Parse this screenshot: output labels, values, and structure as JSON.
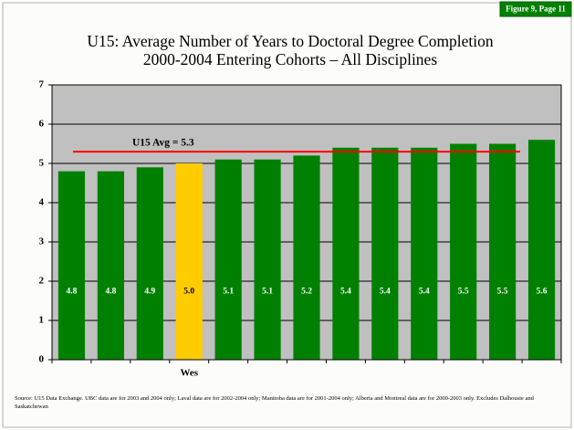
{
  "chart_data": {
    "type": "bar",
    "badge": "Figure 9, Page 11",
    "title": "U15: Average Number of Years to Doctoral Degree Completion",
    "subtitle": "2000-2004 Entering Cohorts – All Disciplines",
    "categories": [
      null,
      null,
      null,
      "Wes",
      null,
      null,
      null,
      null,
      null,
      null,
      null,
      null,
      null
    ],
    "values": [
      4.8,
      4.8,
      4.9,
      5.0,
      5.1,
      5.1,
      5.2,
      5.4,
      5.4,
      5.4,
      5.5,
      5.5,
      5.6
    ],
    "value_labels": [
      "4.8",
      "4.8",
      "4.9",
      "5.0",
      "5.1",
      "5.1",
      "5.2",
      "5.4",
      "5.4",
      "5.4",
      "5.5",
      "5.5",
      "5.6"
    ],
    "colors": [
      "#008000",
      "#008000",
      "#008000",
      "#ffcc00",
      "#008000",
      "#008000",
      "#008000",
      "#008000",
      "#008000",
      "#008000",
      "#008000",
      "#008000",
      "#008000"
    ],
    "ylim": [
      0,
      7
    ],
    "yticks": [
      0,
      1,
      2,
      3,
      4,
      5,
      6,
      7
    ],
    "grid": true,
    "reference_line": {
      "value": 5.3,
      "label": "U15 Avg = 5.3",
      "color": "#ff0000"
    },
    "source": "Source:  U15 Data Exchange.  UBC data are for 2003 and 2004 only; Laval data are for 2002-2004 only; Manitoba data are for 2001-2004 only; Alberta and Montreal data are for 2000-2003 only.  Excludes Dalhousie and Saskatchewan"
  }
}
